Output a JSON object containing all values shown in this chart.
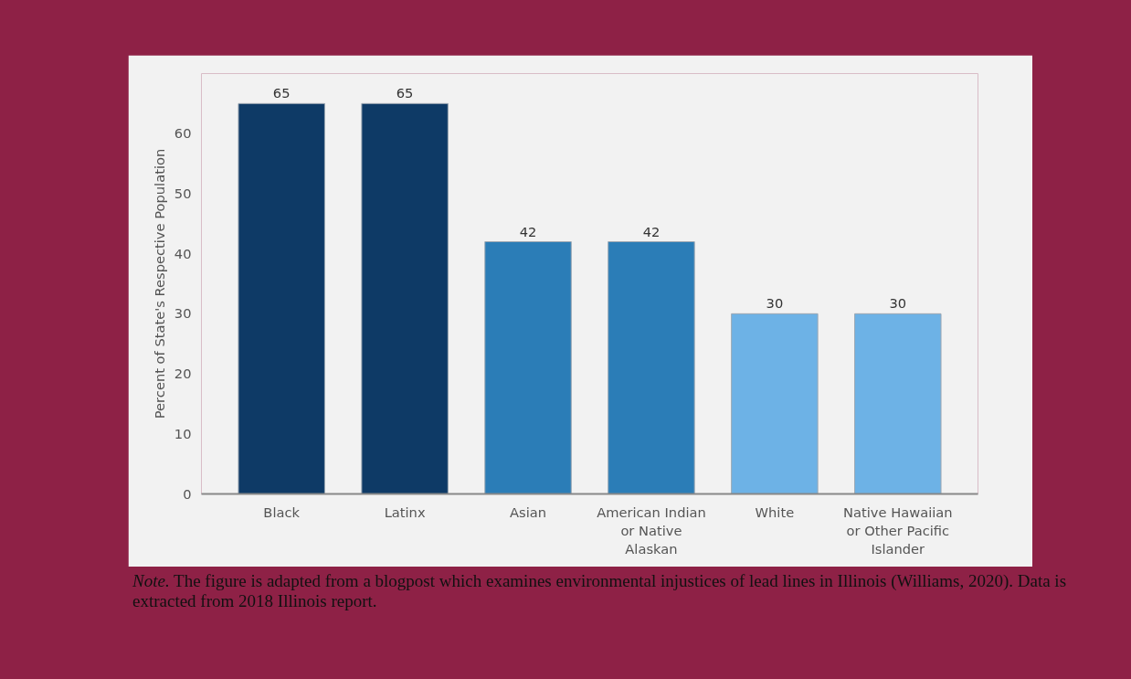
{
  "chart_data": {
    "type": "bar",
    "categories": [
      "Black",
      "Latinx",
      "Asian",
      "American Indian or Native Alaskan",
      "White",
      "Native Hawaiian or Other Pacific Islander"
    ],
    "values": [
      65,
      65,
      42,
      42,
      30,
      30
    ],
    "colors": [
      "#0e3a66",
      "#0e3a66",
      "#2b7db7",
      "#2b7db7",
      "#6db2e6",
      "#6db2e6"
    ],
    "ylabel": "Percent of State's Respective Population",
    "ylim": [
      0,
      70
    ],
    "yticks": [
      0,
      10,
      20,
      30,
      40,
      50,
      60
    ],
    "data_labels": true,
    "grid": false,
    "annotations": [
      "Note.",
      "The figure is adapted from a blogpost which examines environmental injustices of lead lines in Illinois (Williams, 2020). Data is extracted from 2018 Illinois report."
    ]
  }
}
